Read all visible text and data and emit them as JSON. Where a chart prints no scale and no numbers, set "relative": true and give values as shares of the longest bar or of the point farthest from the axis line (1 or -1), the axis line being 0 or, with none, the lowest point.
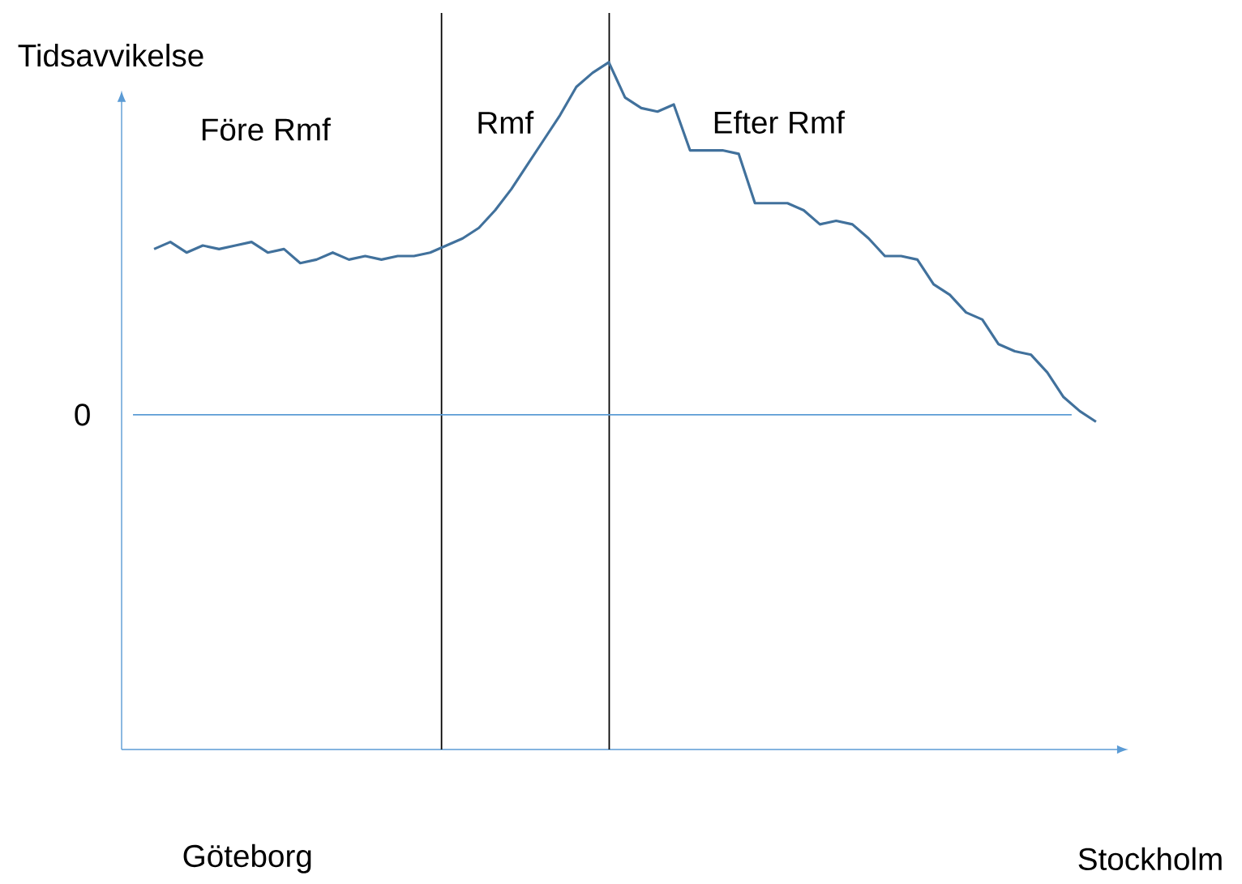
{
  "chart_data": {
    "type": "line",
    "relative": true,
    "ylabel": "Tidsavvikelse",
    "color": "#41719c",
    "categories": [
      null,
      null,
      null,
      null,
      null,
      null,
      null,
      null,
      null,
      null,
      null,
      null,
      null,
      null,
      null,
      null,
      null,
      null,
      null,
      null,
      null,
      null,
      null,
      null,
      null,
      null,
      null,
      null,
      null,
      null,
      null,
      null,
      null,
      null,
      null,
      null,
      null,
      null,
      null,
      null,
      null,
      null,
      null,
      null,
      null,
      null,
      null,
      null,
      null,
      null,
      null,
      null,
      null,
      null,
      null,
      null,
      null,
      null,
      null
    ],
    "values": [
      0.47,
      0.49,
      0.46,
      0.48,
      0.47,
      0.48,
      0.49,
      0.46,
      0.47,
      0.43,
      0.44,
      0.46,
      0.44,
      0.45,
      0.44,
      0.45,
      0.45,
      0.46,
      0.48,
      0.5,
      0.53,
      0.58,
      0.64,
      0.71,
      0.78,
      0.85,
      0.93,
      0.97,
      1.0,
      0.9,
      0.87,
      0.86,
      0.88,
      0.75,
      0.75,
      0.75,
      0.74,
      0.6,
      0.6,
      0.6,
      0.58,
      0.54,
      0.55,
      0.54,
      0.5,
      0.45,
      0.45,
      0.44,
      0.37,
      0.34,
      0.29,
      0.27,
      0.2,
      0.18,
      0.17,
      0.12,
      0.05,
      0.01,
      -0.02
    ],
    "ref_lines": [
      {
        "axis": "y",
        "value": 0,
        "label": "0",
        "color": "#5b9bd5"
      }
    ],
    "annotations": [
      "Före Rmf",
      "Rmf",
      "Efter Rmf",
      "Göteborg",
      "Stockholm"
    ]
  }
}
